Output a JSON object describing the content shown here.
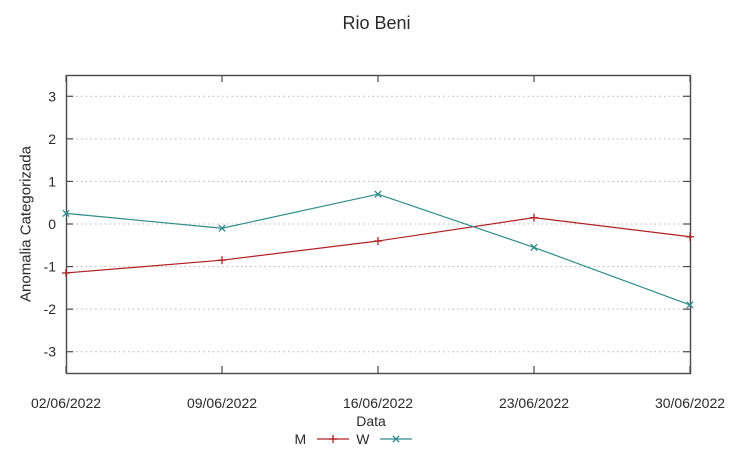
{
  "chart_data": {
    "type": "line",
    "title": "Rio Beni",
    "xlabel": "Data",
    "ylabel": "Anomalia Categorizada",
    "x_tick_labels": [
      "02/06/2022",
      "09/06/2022",
      "16/06/2022",
      "23/06/2022",
      "30/06/2022"
    ],
    "y_ticks": [
      3,
      2,
      1,
      0,
      -1,
      -2,
      -3
    ],
    "ylim": [
      -3.5,
      3.5
    ],
    "grid": "horizontal-dotted",
    "legend_position": "bottom-center",
    "series": [
      {
        "name": "M",
        "color": "#b02020",
        "marker": "plus",
        "values": [
          -1.15,
          -0.85,
          -0.4,
          0.15,
          -0.3
        ]
      },
      {
        "name": "W",
        "color": "#2e8b8b",
        "marker": "cross",
        "values": [
          0.25,
          -0.1,
          0.7,
          -0.55,
          -1.9
        ]
      }
    ],
    "axis_color": "#4a4a4a",
    "grid_color": "#b3b3b3",
    "text_color": "#2a2a2a"
  }
}
